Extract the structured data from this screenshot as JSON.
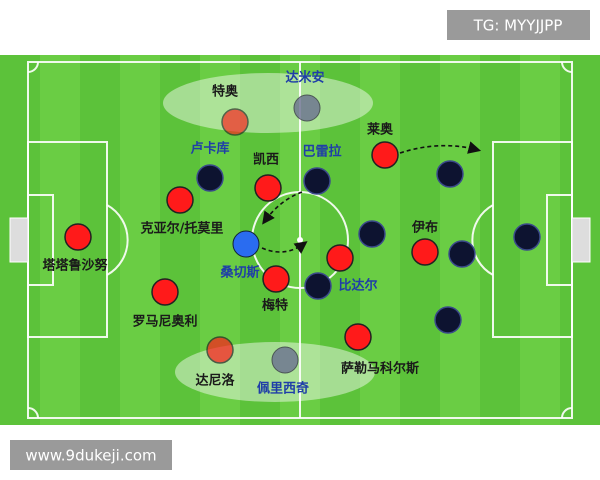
{
  "watermark": "TG: MYYJJPP",
  "footer": "www.9dukeji.com",
  "labels": {
    "theo": "特奥",
    "damian": "达米安",
    "lukaku": "卢卡库",
    "kessie": "凯西",
    "barella": "巴雷拉",
    "leao": "莱奥",
    "kjaer": "克亚尔/托莫里",
    "tatarusanu": "塔塔鲁沙努",
    "ibra": "伊布",
    "sanchez": "桑切斯",
    "meite": "梅特",
    "vidal": "比达尔",
    "romagnoli": "罗马尼奥利",
    "saelemaekers": "萨勒马科尔斯",
    "dalot": "达尼洛",
    "perisic": "佩里西奇"
  }
}
